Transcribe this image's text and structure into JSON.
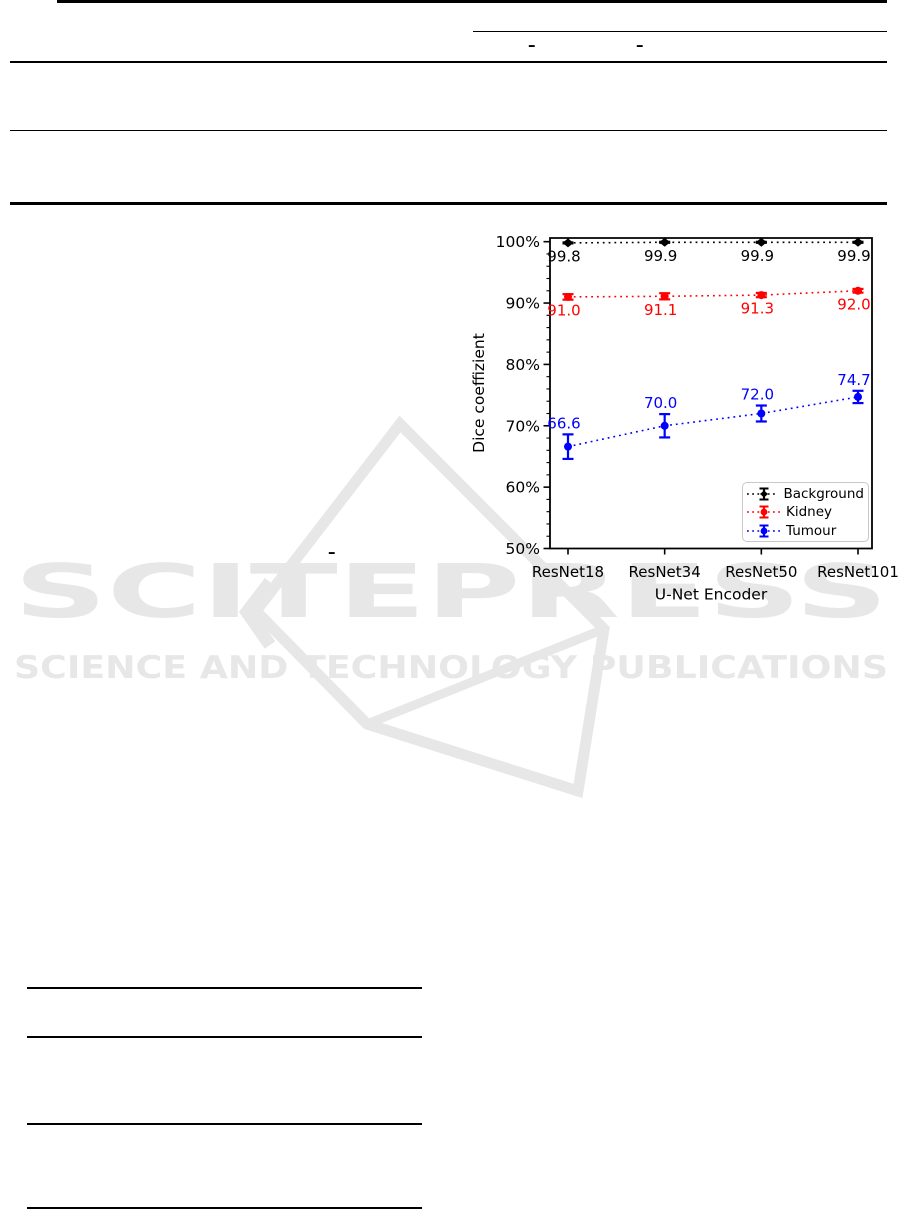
{
  "watermark": {
    "title": "SCITEPRESS",
    "subtitle": "SCIENCE AND TECHNOLOGY PUBLICATIONS",
    "color": "#e7e7e7"
  },
  "remnants": {
    "header_dash_1": "–",
    "header_dash_2": "–",
    "caption_dash": "–"
  },
  "chart_data": {
    "type": "line",
    "title": "",
    "xlabel": "U-Net Encoder",
    "ylabel": "Dice coeffizient",
    "categories": [
      "ResNet18",
      "ResNet34",
      "ResNet50",
      "ResNet101"
    ],
    "ylim": [
      50,
      100.6
    ],
    "yticks": [
      50,
      60,
      70,
      80,
      90,
      100
    ],
    "ytick_suffix": "%",
    "minor_tick_step": 2,
    "grid": false,
    "legend_position": "lower right",
    "series": [
      {
        "name": "Background",
        "color": "#000000",
        "marker": "diamond",
        "linestyle": "dotted",
        "label_side": "below",
        "values": [
          99.8,
          99.9,
          99.9,
          99.9
        ],
        "errors": [
          0.08,
          0.08,
          0.08,
          0.08
        ]
      },
      {
        "name": "Kidney",
        "color": "#ff0000",
        "marker": "circle",
        "linestyle": "dotted",
        "label_side": "below",
        "values": [
          91.0,
          91.1,
          91.3,
          92.0
        ],
        "errors": [
          0.45,
          0.5,
          0.35,
          0.3
        ]
      },
      {
        "name": "Tumour",
        "color": "#0000ff",
        "marker": "circle",
        "linestyle": "dotted",
        "label_side": "above",
        "values": [
          66.6,
          70.0,
          72.0,
          74.7
        ],
        "errors": [
          2.0,
          1.9,
          1.3,
          1.0
        ]
      }
    ]
  }
}
